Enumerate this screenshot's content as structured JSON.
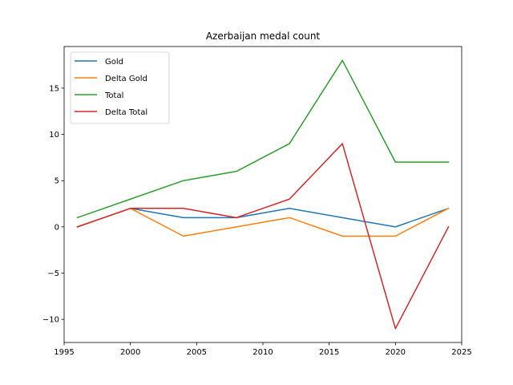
{
  "chart_data": {
    "type": "line",
    "title": "Azerbaijan medal count",
    "xlabel": "",
    "ylabel": "",
    "x": [
      1996,
      2000,
      2004,
      2008,
      2012,
      2016,
      2020,
      2024
    ],
    "xlim": [
      1995,
      2025
    ],
    "ylim": [
      -12.5,
      19.5
    ],
    "xticks": [
      1995,
      2000,
      2005,
      2010,
      2015,
      2020,
      2025
    ],
    "yticks": [
      -10,
      -5,
      0,
      5,
      10,
      15
    ],
    "ytick_labels": [
      "−10",
      "−5",
      "0",
      "5",
      "10",
      "15"
    ],
    "grid": false,
    "legend_position": "top-left",
    "series": [
      {
        "name": "Gold",
        "color": "#1f77b4",
        "values": [
          0,
          2,
          1,
          1,
          2,
          1,
          0,
          2
        ]
      },
      {
        "name": "Delta Gold",
        "color": "#ff7f0e",
        "values": [
          0,
          2,
          -1,
          0,
          1,
          -1,
          -1,
          2
        ]
      },
      {
        "name": "Total",
        "color": "#2ca02c",
        "values": [
          1,
          3,
          5,
          6,
          9,
          18,
          7,
          7
        ]
      },
      {
        "name": "Delta Total",
        "color": "#d62728",
        "values": [
          0,
          2,
          2,
          1,
          3,
          9,
          -11,
          0
        ]
      }
    ]
  }
}
